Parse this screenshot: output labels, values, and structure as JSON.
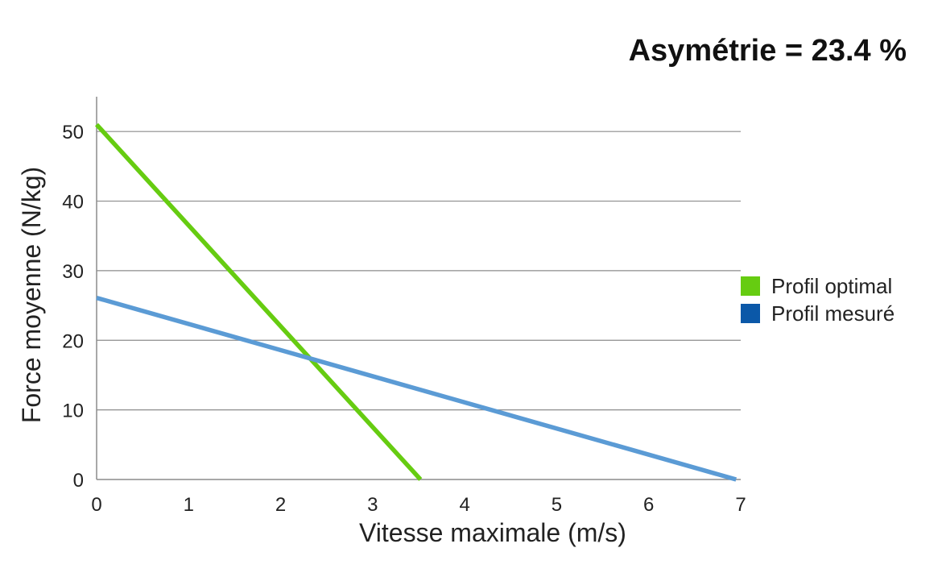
{
  "chart_data": {
    "type": "line",
    "title": "Asymétrie = 23.4 %",
    "xlabel": "Vitesse maximale (m/s)",
    "ylabel": "Force moyenne (N/kg)",
    "xlim": [
      0,
      7
    ],
    "ylim": [
      0,
      55
    ],
    "xticks": [
      "0",
      "1",
      "2",
      "3",
      "4",
      "5",
      "6",
      "7"
    ],
    "yticks": [
      "0",
      "10",
      "20",
      "30",
      "40",
      "50"
    ],
    "grid": "horizontal",
    "legend_position": "right",
    "series": [
      {
        "name": "Profil optimal",
        "color": "#66cc11",
        "legend_color": "#66cc11",
        "x": [
          0,
          3.52
        ],
        "y": [
          51,
          0
        ]
      },
      {
        "name": "Profil mesuré",
        "color": "#5b9bd5",
        "legend_color": "#0b58a8",
        "x": [
          0,
          6.95
        ],
        "y": [
          26.1,
          0
        ]
      }
    ]
  }
}
